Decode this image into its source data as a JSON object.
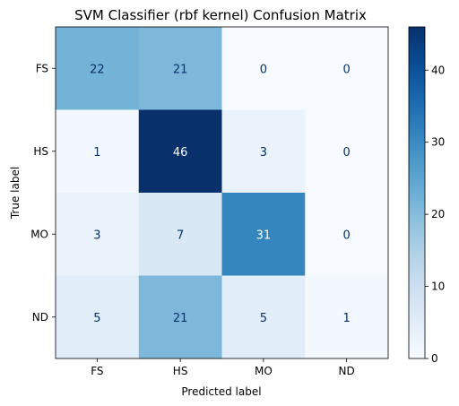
{
  "chart_data": {
    "type": "heatmap",
    "title": "SVM Classifier (rbf kernel) Confusion Matrix",
    "xlabel": "Predicted label",
    "ylabel": "True label",
    "x_categories": [
      "FS",
      "HS",
      "MO",
      "ND"
    ],
    "y_categories": [
      "FS",
      "HS",
      "MO",
      "ND"
    ],
    "values": [
      [
        22,
        21,
        0,
        0
      ],
      [
        1,
        46,
        3,
        0
      ],
      [
        3,
        7,
        31,
        0
      ],
      [
        5,
        21,
        5,
        1
      ]
    ],
    "colormap": "Blues",
    "colorbar": {
      "range": [
        0,
        46
      ],
      "ticks": [
        0,
        10,
        20,
        30,
        40
      ]
    }
  }
}
